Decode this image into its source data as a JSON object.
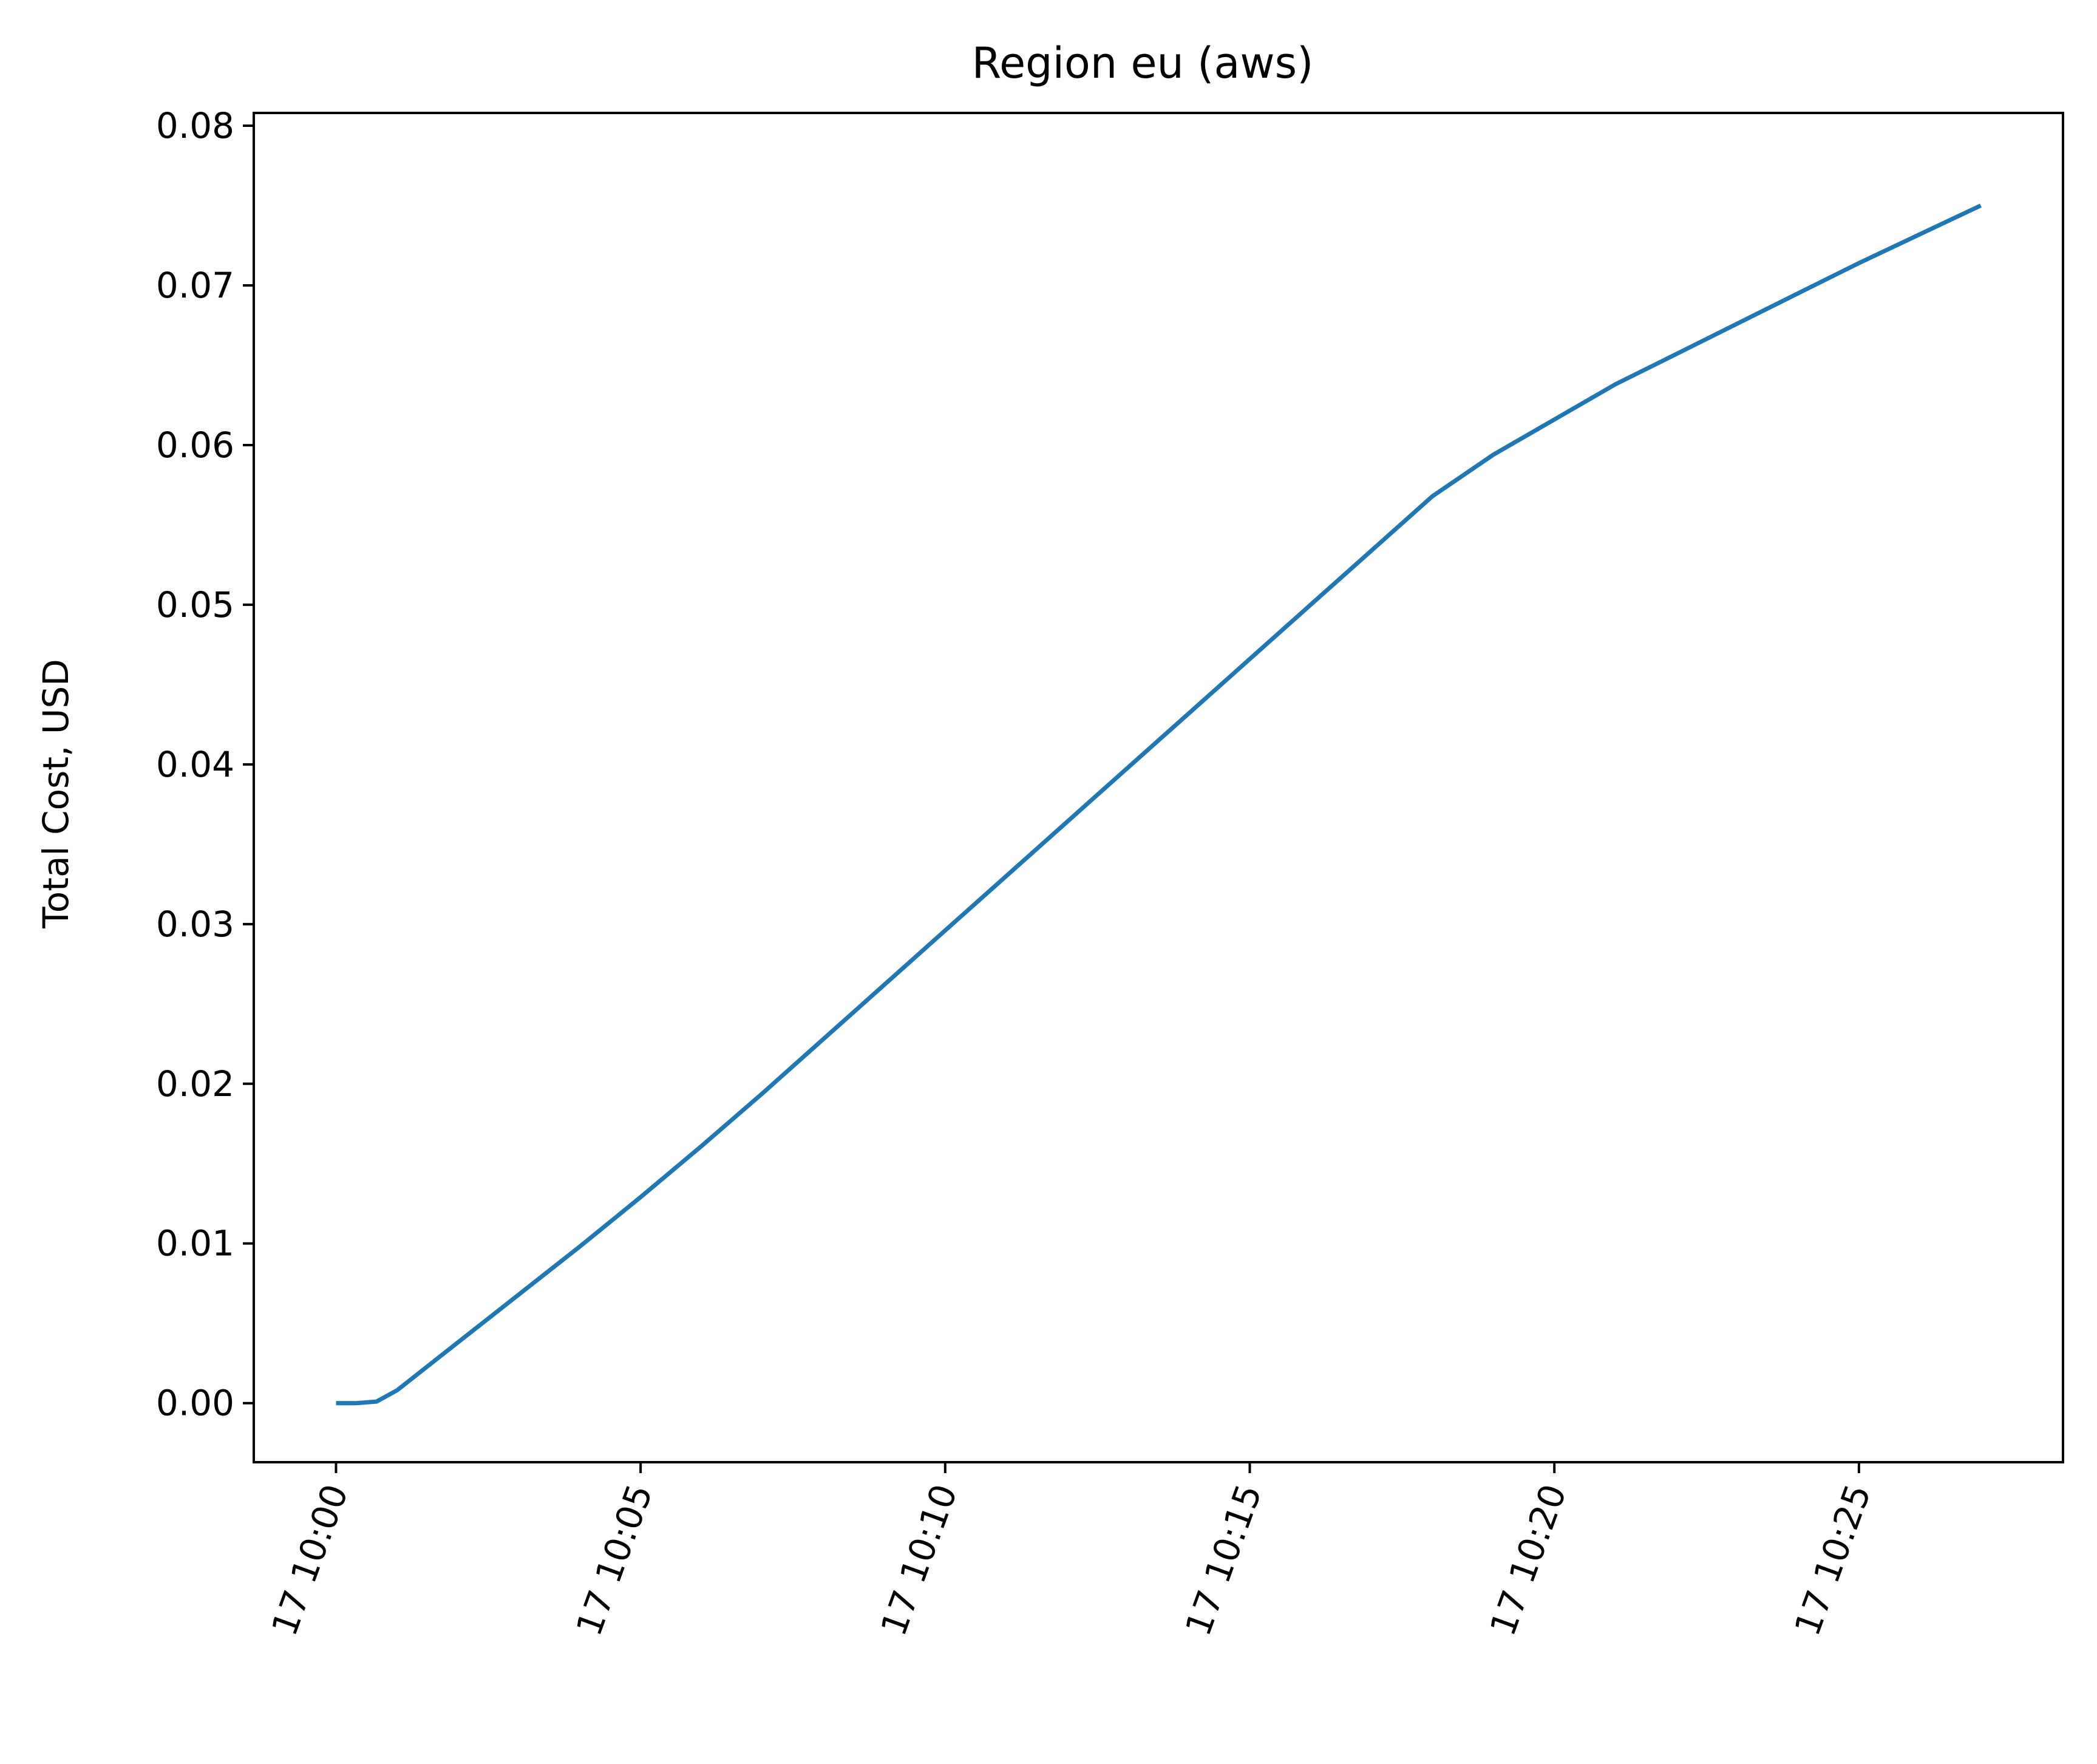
{
  "chart_data": {
    "type": "line",
    "title": "Region eu (aws)",
    "xlabel": "",
    "ylabel": "Total Cost, USD",
    "x_ticks": [
      "17 10:00",
      "17 10:05",
      "17 10:10",
      "17 10:15",
      "17 10:20",
      "17 10:25"
    ],
    "y_ticks": [
      "0.00",
      "0.01",
      "0.02",
      "0.03",
      "0.04",
      "0.05",
      "0.06",
      "0.07",
      "0.08"
    ],
    "xlim": [
      "10:00",
      "10:28"
    ],
    "ylim": [
      -0.0037,
      0.0808
    ],
    "grid": false,
    "legend": "none",
    "series": [
      {
        "color": "#1f77b4",
        "x": [
          "10:00",
          "10:00:20",
          "10:00:40",
          "10:01:00",
          "10:02:00",
          "10:03:00",
          "10:04:00",
          "10:05:00",
          "10:06:00",
          "10:07:00",
          "10:08:00",
          "10:09:00",
          "10:10:00",
          "10:11:00",
          "10:12:00",
          "10:13:00",
          "10:14:00",
          "10:15:00",
          "10:16:00",
          "10:17:00",
          "10:18:00",
          "10:19:00",
          "10:20:00",
          "10:21:00",
          "10:22:00",
          "10:23:00",
          "10:24:00",
          "10:25:00",
          "10:26:00",
          "10:27:00"
        ],
        "y": [
          0.0,
          0.0,
          0.0001,
          0.0008,
          0.0038,
          0.0068,
          0.0098,
          0.0129,
          0.0161,
          0.0194,
          0.0228,
          0.0262,
          0.0296,
          0.033,
          0.0364,
          0.0398,
          0.0432,
          0.0466,
          0.05,
          0.0534,
          0.0568,
          0.0594,
          0.0616,
          0.0638,
          0.0657,
          0.0676,
          0.0695,
          0.0714,
          0.0732,
          0.075
        ]
      }
    ]
  }
}
